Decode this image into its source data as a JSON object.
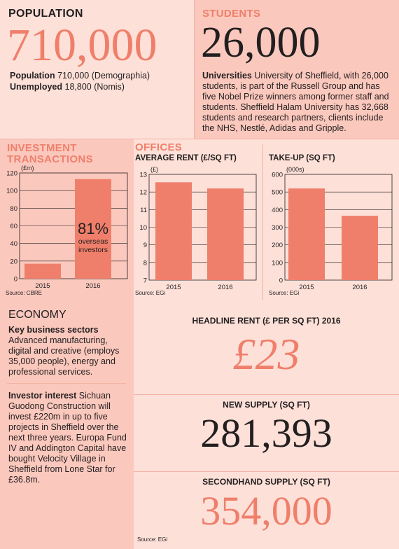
{
  "colors": {
    "accent": "#ef7f6b",
    "bg_dark": "#fbc8bd",
    "bg_light": "#fde0d8",
    "text": "#231f20"
  },
  "population": {
    "heading": "POPULATION",
    "big": "710,000",
    "line1_label": "Population",
    "line1_value": "710,000 (Demographia)",
    "line2_label": "Unemployed",
    "line2_value": "18,800 (Nomis)"
  },
  "students": {
    "heading": "STUDENTS",
    "big": "26,000",
    "label": "Universities",
    "text": "University of Sheffield, with 26,000 students, is part of the Russell Group and has five Nobel Prize winners among former staff and students. Sheffield Halam University has 32,668 students and research partners, clients include the NHS, Nestlé, Adidas and Gripple."
  },
  "investment": {
    "heading_line1": "INVESTMENT",
    "heading_line2": "TRANSACTIONS",
    "source": "Source: CBRE"
  },
  "offices": {
    "heading": "OFFICES",
    "source": "Source: EGi"
  },
  "take_up_source": "Source: EGi",
  "chart_data": [
    {
      "type": "bar",
      "title": "",
      "unit_label": "£m",
      "categories": [
        "2015",
        "2016"
      ],
      "values": [
        17,
        113
      ],
      "ylim": [
        0,
        120
      ],
      "yticks": [
        0,
        20,
        40,
        60,
        80,
        100,
        120
      ],
      "annotation": {
        "value": "81%",
        "line1": "overseas",
        "line2": "investors"
      },
      "grid": true
    },
    {
      "type": "bar",
      "title": "AVERAGE RENT (£/SQ FT)",
      "unit_label": "£",
      "categories": [
        "2015",
        "2016"
      ],
      "values": [
        12.55,
        12.2
      ],
      "ylim": [
        7,
        13
      ],
      "yticks": [
        7,
        8,
        9,
        10,
        11,
        12,
        13
      ],
      "grid": true
    },
    {
      "type": "bar",
      "title": "TAKE-UP (SQ FT)",
      "unit_label": "000s",
      "categories": [
        "2015",
        "2016"
      ],
      "values": [
        520,
        365
      ],
      "ylim": [
        0,
        600
      ],
      "yticks": [
        0,
        100,
        200,
        300,
        400,
        500,
        600
      ],
      "grid": true
    }
  ],
  "economy": {
    "heading": "ECONOMY",
    "sectors_label": "Key business sectors",
    "sectors_text": "Advanced manufacturing, digital and creative (employs 35,000 people), energy and professional services.",
    "investor_label": "Investor interest",
    "investor_text": "Sichuan Guodong Construction will invest £220m in up to five projects in Sheffield over the next three years. Europa Fund IV and Addington Capital have bought Velocity Village in Sheffield from Lone Star for £36.8m."
  },
  "headline_rent": {
    "label": "HEADLINE RENT (£ PER SQ FT) 2016",
    "value": "£23"
  },
  "new_supply": {
    "label": "NEW SUPPLY (SQ FT)",
    "value": "281,393"
  },
  "secondhand_supply": {
    "label": "SECONDHAND SUPPLY (SQ FT)",
    "value": "354,000"
  },
  "bottom_source": "Source: EGi"
}
